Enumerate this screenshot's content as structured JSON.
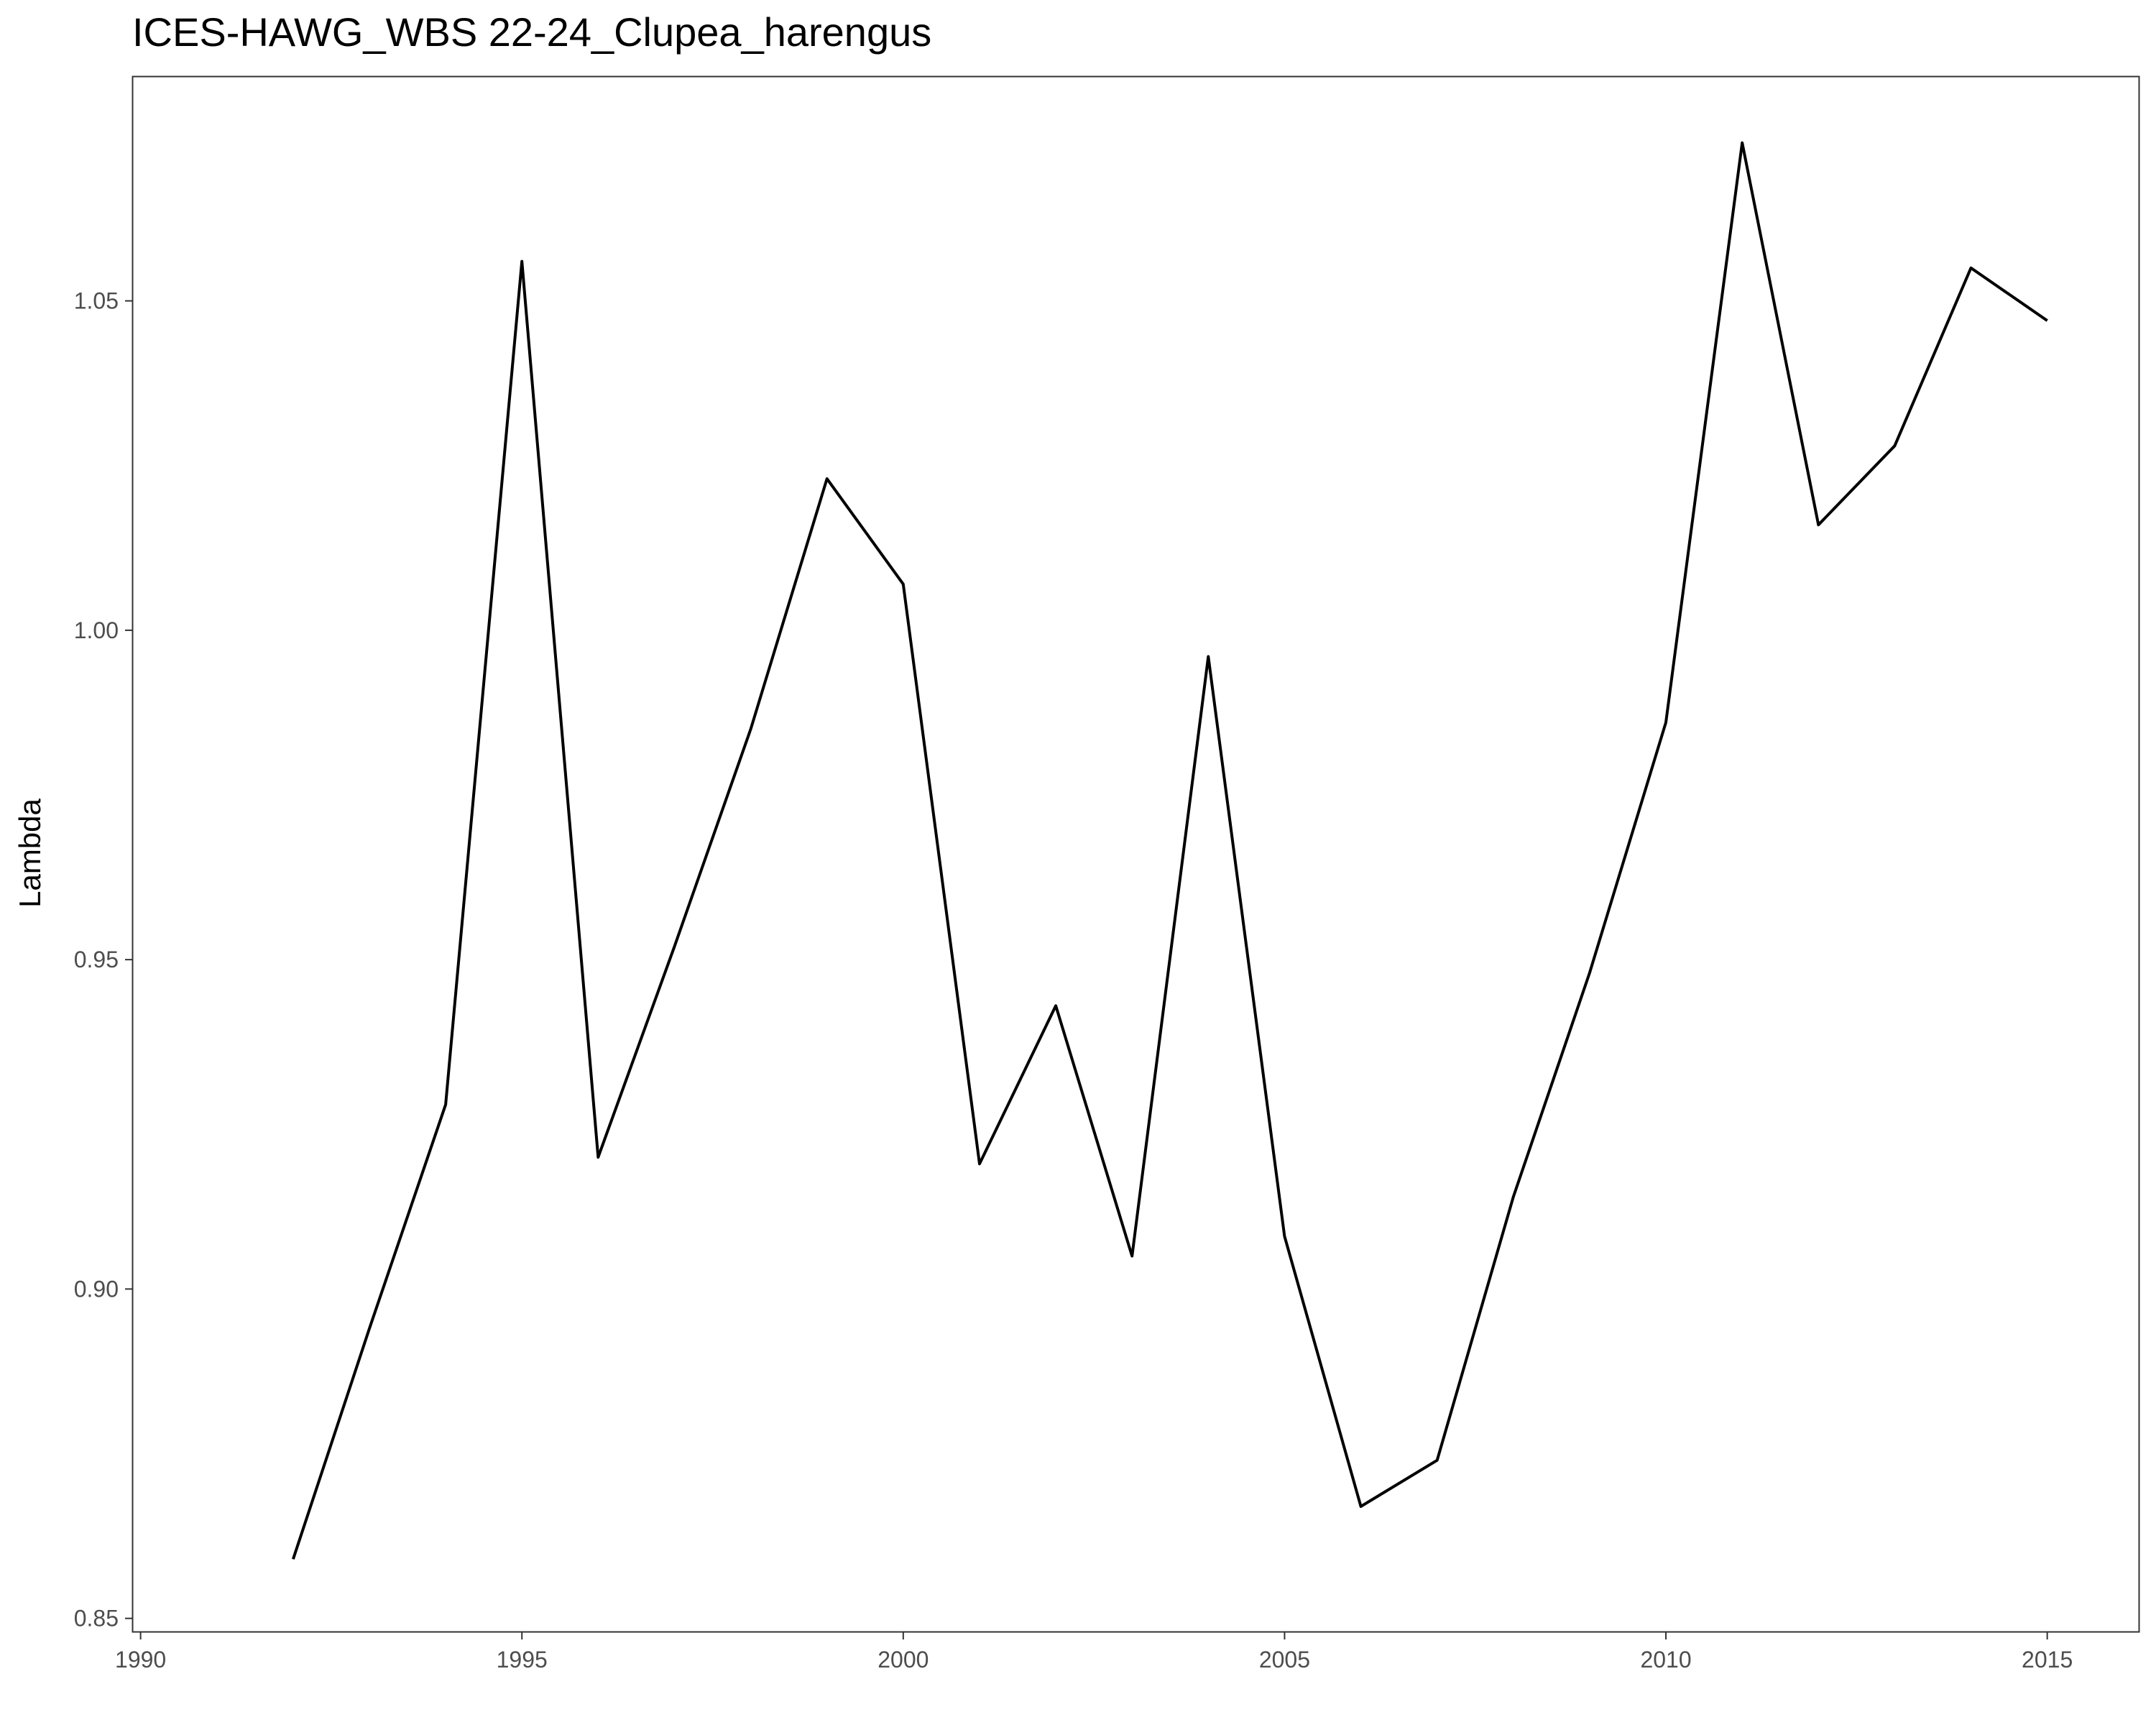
{
  "chart_data": {
    "type": "line",
    "title": "ICES-HAWG_WBS 22-24_Clupea_harengus",
    "xlabel": "",
    "ylabel": "Lambda",
    "xlim": [
      1989.9,
      2016.2
    ],
    "ylim": [
      0.848,
      1.084
    ],
    "x_ticks": [
      1990,
      1995,
      2000,
      2005,
      2010,
      2015
    ],
    "y_ticks": [
      0.85,
      0.9,
      0.95,
      1.0,
      1.05
    ],
    "y_tick_labels": [
      "0.85",
      "0.90",
      "0.95",
      "1.00",
      "1.05"
    ],
    "grid": false,
    "series": [
      {
        "color": "#000000",
        "x": [
          1992,
          1993,
          1994,
          1995,
          1996,
          1997,
          1998,
          1999,
          2000,
          2001,
          2002,
          2003,
          2004,
          2005,
          2006,
          2007,
          2008,
          2009,
          2010,
          2011,
          2012,
          2013,
          2014,
          2015
        ],
        "y": [
          0.859,
          0.894,
          0.928,
          1.056,
          0.92,
          0.952,
          0.985,
          1.023,
          1.007,
          0.919,
          0.943,
          0.905,
          0.996,
          0.908,
          0.867,
          0.874,
          0.914,
          0.948,
          0.986,
          1.074,
          1.016,
          1.028,
          1.055,
          1.047
        ]
      }
    ]
  }
}
